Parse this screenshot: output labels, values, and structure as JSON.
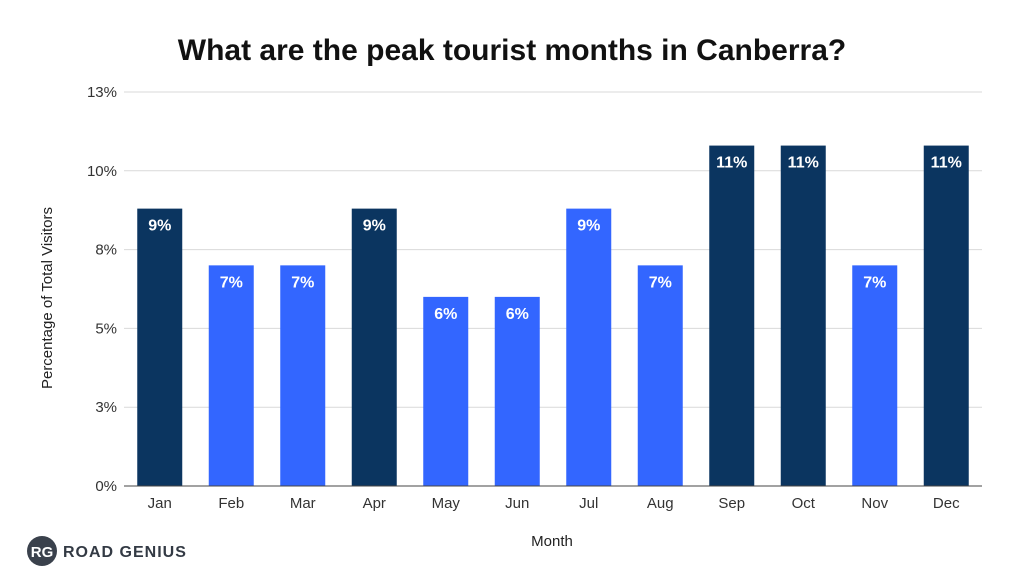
{
  "chart_data": {
    "type": "bar",
    "title": "What are the peak tourist months in Canberra?",
    "xlabel": "Month",
    "ylabel": "Percentage of Total Visitors",
    "categories": [
      "Jan",
      "Feb",
      "Mar",
      "Apr",
      "May",
      "Jun",
      "Jul",
      "Aug",
      "Sep",
      "Oct",
      "Nov",
      "Dec"
    ],
    "values": [
      9,
      7,
      7,
      9,
      6,
      6,
      9,
      7,
      11,
      11,
      7,
      11
    ],
    "bar_positions": [
      8.8,
      7.0,
      7.0,
      8.8,
      6.0,
      6.0,
      8.8,
      7.0,
      10.8,
      10.8,
      7.0,
      10.8
    ],
    "data_labels": [
      "9%",
      "7%",
      "7%",
      "9%",
      "6%",
      "6%",
      "9%",
      "7%",
      "11%",
      "11%",
      "7%",
      "11%"
    ],
    "highlighted": [
      true,
      false,
      false,
      true,
      false,
      false,
      false,
      false,
      true,
      true,
      false,
      true
    ],
    "ylim": [
      0,
      12.5
    ],
    "yticks": [
      0,
      2.5,
      5,
      7.5,
      10,
      12.5
    ],
    "ytick_labels": [
      "0%",
      "3%",
      "5%",
      "8%",
      "10%",
      "13%"
    ],
    "grid": true,
    "legend": "none",
    "colors": {
      "highlight": "#0b3560",
      "default": "#3366ff",
      "grid": "#d9d9d9",
      "axis": "#444444"
    }
  },
  "brand": {
    "logo_mark": "RG",
    "logo_text": "ROAD GENIUS"
  }
}
